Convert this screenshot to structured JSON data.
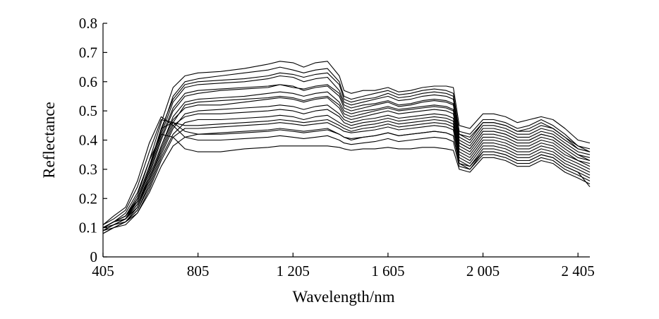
{
  "chart_data": {
    "type": "line",
    "title": "",
    "xlabel": "Wavelength/nm",
    "ylabel": "Reflectance",
    "xlim": [
      405,
      2455
    ],
    "ylim": [
      0,
      0.8
    ],
    "x_ticks": [
      405,
      805,
      1205,
      1605,
      2005,
      2405
    ],
    "x_tick_labels": [
      "405",
      "805",
      "1 205",
      "1 605",
      "2 005",
      "2 405"
    ],
    "y_ticks": [
      0,
      0.1,
      0.2,
      0.3,
      0.4,
      0.5,
      0.6,
      0.7,
      0.8
    ],
    "y_tick_labels": [
      "0",
      "0.1",
      "0.2",
      "0.3",
      "0.4",
      "0.5",
      "0.6",
      "0.7",
      "0.8"
    ],
    "grid": false,
    "legend": "none",
    "line_color": "#000000",
    "x": [
      405,
      450,
      500,
      550,
      600,
      650,
      700,
      750,
      805,
      900,
      1000,
      1100,
      1150,
      1205,
      1250,
      1300,
      1350,
      1400,
      1420,
      1450,
      1500,
      1550,
      1605,
      1650,
      1700,
      1750,
      1800,
      1850,
      1880,
      1905,
      1950,
      2005,
      2050,
      2100,
      2150,
      2200,
      2250,
      2300,
      2350,
      2405,
      2455
    ],
    "series": [
      {
        "values": [
          0.1,
          0.12,
          0.14,
          0.21,
          0.33,
          0.46,
          0.58,
          0.62,
          0.63,
          0.635,
          0.645,
          0.66,
          0.67,
          0.665,
          0.65,
          0.665,
          0.67,
          0.62,
          0.57,
          0.56,
          0.57,
          0.57,
          0.58,
          0.565,
          0.57,
          0.58,
          0.585,
          0.585,
          0.58,
          0.45,
          0.44,
          0.49,
          0.49,
          0.48,
          0.46,
          0.47,
          0.48,
          0.47,
          0.44,
          0.4,
          0.39
        ]
      },
      {
        "values": [
          0.09,
          0.11,
          0.13,
          0.2,
          0.31,
          0.43,
          0.55,
          0.6,
          0.61,
          0.62,
          0.63,
          0.64,
          0.65,
          0.64,
          0.63,
          0.64,
          0.645,
          0.6,
          0.55,
          0.54,
          0.55,
          0.56,
          0.57,
          0.555,
          0.56,
          0.57,
          0.575,
          0.57,
          0.56,
          0.43,
          0.42,
          0.47,
          0.47,
          0.46,
          0.44,
          0.45,
          0.47,
          0.45,
          0.42,
          0.38,
          0.37
        ]
      },
      {
        "values": [
          0.1,
          0.12,
          0.13,
          0.19,
          0.3,
          0.42,
          0.53,
          0.58,
          0.59,
          0.595,
          0.6,
          0.61,
          0.62,
          0.615,
          0.6,
          0.61,
          0.615,
          0.57,
          0.53,
          0.52,
          0.53,
          0.54,
          0.55,
          0.535,
          0.54,
          0.55,
          0.555,
          0.55,
          0.54,
          0.42,
          0.4,
          0.46,
          0.46,
          0.45,
          0.43,
          0.43,
          0.45,
          0.44,
          0.41,
          0.37,
          0.36
        ]
      },
      {
        "values": [
          0.09,
          0.11,
          0.13,
          0.18,
          0.28,
          0.4,
          0.5,
          0.55,
          0.56,
          0.57,
          0.575,
          0.58,
          0.59,
          0.585,
          0.57,
          0.58,
          0.585,
          0.55,
          0.51,
          0.5,
          0.51,
          0.52,
          0.53,
          0.515,
          0.52,
          0.53,
          0.535,
          0.53,
          0.52,
          0.4,
          0.38,
          0.44,
          0.44,
          0.43,
          0.41,
          0.41,
          0.43,
          0.42,
          0.39,
          0.36,
          0.35
        ]
      },
      {
        "values": [
          0.1,
          0.12,
          0.14,
          0.19,
          0.29,
          0.41,
          0.51,
          0.56,
          0.57,
          0.575,
          0.58,
          0.585,
          0.59,
          0.58,
          0.575,
          0.585,
          0.59,
          0.56,
          0.52,
          0.51,
          0.52,
          0.525,
          0.535,
          0.52,
          0.525,
          0.535,
          0.54,
          0.535,
          0.525,
          0.41,
          0.39,
          0.45,
          0.45,
          0.44,
          0.42,
          0.42,
          0.44,
          0.43,
          0.4,
          0.37,
          0.36
        ]
      },
      {
        "values": [
          0.09,
          0.11,
          0.12,
          0.17,
          0.26,
          0.37,
          0.46,
          0.52,
          0.53,
          0.535,
          0.54,
          0.545,
          0.55,
          0.545,
          0.535,
          0.545,
          0.55,
          0.52,
          0.49,
          0.48,
          0.49,
          0.5,
          0.51,
          0.5,
          0.505,
          0.51,
          0.515,
          0.51,
          0.5,
          0.39,
          0.37,
          0.43,
          0.43,
          0.42,
          0.4,
          0.4,
          0.42,
          0.41,
          0.38,
          0.35,
          0.34
        ]
      },
      {
        "values": [
          0.1,
          0.11,
          0.13,
          0.17,
          0.27,
          0.38,
          0.47,
          0.51,
          0.52,
          0.52,
          0.53,
          0.54,
          0.545,
          0.54,
          0.53,
          0.54,
          0.545,
          0.51,
          0.48,
          0.47,
          0.48,
          0.49,
          0.5,
          0.49,
          0.495,
          0.5,
          0.505,
          0.5,
          0.49,
          0.38,
          0.36,
          0.42,
          0.42,
          0.41,
          0.39,
          0.39,
          0.41,
          0.4,
          0.37,
          0.34,
          0.33
        ]
      },
      {
        "values": [
          0.08,
          0.1,
          0.12,
          0.16,
          0.25,
          0.35,
          0.44,
          0.49,
          0.5,
          0.505,
          0.51,
          0.515,
          0.52,
          0.515,
          0.505,
          0.515,
          0.52,
          0.49,
          0.47,
          0.46,
          0.47,
          0.475,
          0.485,
          0.475,
          0.48,
          0.485,
          0.49,
          0.485,
          0.475,
          0.37,
          0.35,
          0.41,
          0.41,
          0.4,
          0.38,
          0.38,
          0.4,
          0.39,
          0.36,
          0.33,
          0.32
        ]
      },
      {
        "values": [
          0.1,
          0.12,
          0.13,
          0.17,
          0.26,
          0.36,
          0.45,
          0.48,
          0.49,
          0.49,
          0.495,
          0.5,
          0.505,
          0.5,
          0.49,
          0.5,
          0.505,
          0.48,
          0.46,
          0.45,
          0.46,
          0.465,
          0.475,
          0.465,
          0.47,
          0.475,
          0.48,
          0.475,
          0.465,
          0.36,
          0.34,
          0.4,
          0.4,
          0.39,
          0.37,
          0.37,
          0.39,
          0.38,
          0.35,
          0.33,
          0.31
        ]
      },
      {
        "values": [
          0.09,
          0.11,
          0.12,
          0.16,
          0.24,
          0.34,
          0.42,
          0.46,
          0.47,
          0.47,
          0.475,
          0.48,
          0.485,
          0.48,
          0.47,
          0.48,
          0.485,
          0.46,
          0.45,
          0.44,
          0.45,
          0.455,
          0.465,
          0.455,
          0.46,
          0.465,
          0.47,
          0.465,
          0.455,
          0.35,
          0.33,
          0.39,
          0.39,
          0.38,
          0.36,
          0.36,
          0.38,
          0.37,
          0.34,
          0.32,
          0.3
        ]
      },
      {
        "values": [
          0.1,
          0.12,
          0.14,
          0.19,
          0.3,
          0.44,
          0.46,
          0.45,
          0.45,
          0.455,
          0.46,
          0.465,
          0.47,
          0.465,
          0.46,
          0.465,
          0.47,
          0.45,
          0.44,
          0.43,
          0.44,
          0.445,
          0.455,
          0.445,
          0.45,
          0.455,
          0.46,
          0.455,
          0.445,
          0.34,
          0.32,
          0.38,
          0.38,
          0.37,
          0.35,
          0.35,
          0.37,
          0.36,
          0.33,
          0.31,
          0.29
        ]
      },
      {
        "values": [
          0.11,
          0.13,
          0.16,
          0.24,
          0.36,
          0.47,
          0.46,
          0.43,
          0.42,
          0.42,
          0.425,
          0.43,
          0.435,
          0.43,
          0.425,
          0.43,
          0.435,
          0.42,
          0.41,
          0.4,
          0.41,
          0.415,
          0.425,
          0.415,
          0.42,
          0.425,
          0.43,
          0.425,
          0.415,
          0.32,
          0.31,
          0.36,
          0.36,
          0.35,
          0.33,
          0.33,
          0.35,
          0.34,
          0.31,
          0.29,
          0.27
        ]
      },
      {
        "values": [
          0.11,
          0.14,
          0.17,
          0.26,
          0.39,
          0.48,
          0.45,
          0.41,
          0.4,
          0.4,
          0.405,
          0.41,
          0.415,
          0.41,
          0.405,
          0.41,
          0.415,
          0.4,
          0.39,
          0.385,
          0.39,
          0.395,
          0.405,
          0.395,
          0.4,
          0.405,
          0.41,
          0.405,
          0.395,
          0.31,
          0.3,
          0.35,
          0.35,
          0.34,
          0.32,
          0.32,
          0.34,
          0.33,
          0.3,
          0.28,
          0.26
        ]
      },
      {
        "values": [
          0.1,
          0.12,
          0.15,
          0.22,
          0.33,
          0.42,
          0.41,
          0.37,
          0.36,
          0.36,
          0.37,
          0.375,
          0.38,
          0.38,
          0.38,
          0.38,
          0.38,
          0.375,
          0.37,
          0.365,
          0.37,
          0.37,
          0.375,
          0.37,
          0.37,
          0.375,
          0.375,
          0.37,
          0.365,
          0.3,
          0.29,
          0.34,
          0.34,
          0.33,
          0.31,
          0.31,
          0.33,
          0.32,
          0.29,
          0.27,
          0.25
        ]
      },
      {
        "values": [
          0.08,
          0.1,
          0.11,
          0.15,
          0.23,
          0.33,
          0.41,
          0.44,
          0.44,
          0.445,
          0.45,
          0.455,
          0.46,
          0.455,
          0.45,
          0.455,
          0.46,
          0.44,
          0.43,
          0.425,
          0.43,
          0.435,
          0.445,
          0.435,
          0.44,
          0.445,
          0.45,
          0.445,
          0.435,
          0.33,
          0.31,
          0.37,
          0.37,
          0.36,
          0.34,
          0.34,
          0.36,
          0.35,
          0.32,
          0.3,
          0.28
        ]
      },
      {
        "values": [
          0.09,
          0.1,
          0.12,
          0.15,
          0.22,
          0.31,
          0.38,
          0.41,
          0.42,
          0.425,
          0.43,
          0.435,
          0.44,
          0.435,
          0.43,
          0.435,
          0.44,
          0.42,
          0.41,
          0.405,
          0.41,
          0.415,
          0.425,
          0.415,
          0.42,
          0.425,
          0.43,
          0.425,
          0.415,
          0.32,
          0.3,
          0.36,
          0.36,
          0.35,
          0.33,
          0.33,
          0.35,
          0.34,
          0.31,
          0.29,
          0.24
        ]
      },
      {
        "values": [
          0.1,
          0.12,
          0.14,
          0.2,
          0.31,
          0.44,
          0.54,
          0.59,
          0.6,
          0.605,
          0.61,
          0.62,
          0.63,
          0.625,
          0.615,
          0.625,
          0.63,
          0.59,
          0.54,
          0.53,
          0.54,
          0.545,
          0.56,
          0.545,
          0.55,
          0.56,
          0.565,
          0.56,
          0.55,
          0.42,
          0.41,
          0.46,
          0.46,
          0.45,
          0.43,
          0.44,
          0.46,
          0.44,
          0.41,
          0.38,
          0.36
        ]
      },
      {
        "values": [
          0.09,
          0.11,
          0.13,
          0.18,
          0.27,
          0.38,
          0.48,
          0.53,
          0.54,
          0.545,
          0.55,
          0.56,
          0.565,
          0.56,
          0.55,
          0.56,
          0.565,
          0.53,
          0.5,
          0.49,
          0.5,
          0.505,
          0.515,
          0.505,
          0.51,
          0.515,
          0.52,
          0.515,
          0.505,
          0.39,
          0.37,
          0.43,
          0.43,
          0.42,
          0.4,
          0.4,
          0.42,
          0.41,
          0.38,
          0.35,
          0.33
        ]
      }
    ]
  }
}
